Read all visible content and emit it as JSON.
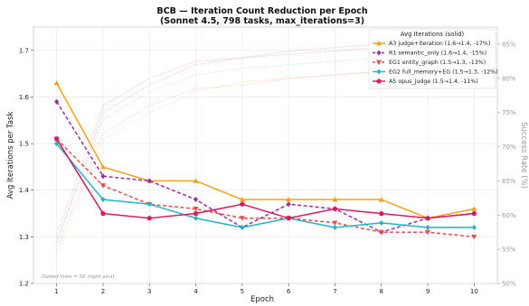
{
  "chart_data": {
    "type": "line",
    "title_line1": "BCB — Iteration Count Reduction per Epoch",
    "title_line2": "(Sonnet 4.5, 798 tasks, max_iterations=3)",
    "xlabel": "Epoch",
    "ylabel": "Avg Iterations per Task",
    "y2label": "Success Rate (%)",
    "x": [
      1,
      2,
      3,
      4,
      5,
      6,
      7,
      8,
      9,
      10
    ],
    "xlim": [
      0.5,
      10.5
    ],
    "ylim": [
      1.2,
      1.75
    ],
    "y2lim": [
      50,
      87.5
    ],
    "yticks": [
      "1.2",
      "1.3",
      "1.4",
      "1.5",
      "1.6",
      "1.7"
    ],
    "y2ticks": [
      "50%",
      "55%",
      "60%",
      "65%",
      "70%",
      "75%",
      "80%",
      "85%"
    ],
    "grid": true,
    "legend": {
      "title": "Avg Iterations (solid)",
      "placement": "top-right"
    },
    "note": "Dotted lines = SR (right axis)",
    "series": [
      {
        "name": "A3 judge+iteration (1.6→1.4, -17%)",
        "color": "#f5a01a",
        "dash": "solid",
        "marker": "triangle-up",
        "values": [
          1.63,
          1.45,
          1.42,
          1.42,
          1.38,
          1.38,
          1.38,
          1.38,
          1.34,
          1.36
        ],
        "sr": [
          54,
          71,
          75,
          78,
          79.5,
          80,
          80.5,
          81,
          81.5,
          81.5
        ]
      },
      {
        "name": "R1 semantic_only (1.6→1.4, -15%)",
        "color": "#9b2ea6",
        "dash": "dashed",
        "marker": "diamond",
        "values": [
          1.59,
          1.43,
          1.42,
          1.38,
          1.32,
          1.37,
          1.36,
          1.31,
          1.34,
          1.35
        ],
        "sr": [
          56,
          75,
          79,
          82,
          83,
          84,
          84.5,
          85,
          85,
          85
        ]
      },
      {
        "name": "EG1 entity_graph (1.5→1.3, -13%)",
        "color": "#e94e4e",
        "dash": "dashed",
        "marker": "triangle-down",
        "values": [
          1.51,
          1.41,
          1.37,
          1.36,
          1.34,
          1.34,
          1.33,
          1.31,
          1.31,
          1.3
        ],
        "sr": [
          55,
          72,
          76,
          78.5,
          79,
          80,
          80.5,
          81,
          81.5,
          82
        ]
      },
      {
        "name": "EG2 full_memory+EG (1.5→1.3, -12%)",
        "color": "#1fb5c7",
        "dash": "solid",
        "marker": "diamond",
        "values": [
          1.5,
          1.38,
          1.37,
          1.34,
          1.32,
          1.34,
          1.32,
          1.33,
          1.32,
          1.32
        ],
        "sr": [
          56,
          74,
          78,
          80.5,
          81.5,
          82,
          82.5,
          83,
          83,
          83
        ]
      },
      {
        "name": "A5 opus_judge (1.5→1.4, -11%)",
        "color": "#d81b60",
        "dash": "solid",
        "marker": "pentagon",
        "values": [
          1.51,
          1.35,
          1.34,
          1.35,
          1.37,
          1.34,
          1.36,
          1.35,
          1.34,
          1.35
        ],
        "sr": [
          57,
          76,
          80,
          82.5,
          83,
          83.5,
          84,
          84.5,
          84.5,
          85
        ]
      }
    ]
  }
}
